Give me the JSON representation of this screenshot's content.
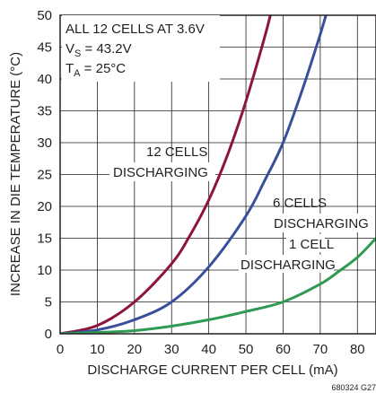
{
  "chart_data": {
    "type": "line",
    "xlabel": "DISCHARGE CURRENT PER CELL (mA)",
    "ylabel": "INCREASE IN DIE TEMPERATURE (°C)",
    "xlim": [
      0,
      85
    ],
    "ylim": [
      0,
      50
    ],
    "x_ticks": [
      "0",
      "10",
      "20",
      "30",
      "40",
      "50",
      "60",
      "70",
      "80"
    ],
    "y_ticks": [
      "0",
      "5",
      "10",
      "15",
      "20",
      "25",
      "30",
      "35",
      "40",
      "45",
      "50"
    ],
    "grid": true,
    "conditions": {
      "line1": "ALL 12 CELLS AT 3.6V",
      "vs_symbol": "V",
      "vs_sub": "S",
      "vs_value": " = 43.2V",
      "ta_symbol": "T",
      "ta_sub": "A",
      "ta_value": " = 25°C"
    },
    "series": [
      {
        "label_lines": [
          "12 CELLS",
          "DISCHARGING"
        ],
        "color": "#8c1538",
        "points": [
          [
            0,
            0
          ],
          [
            10,
            1.3
          ],
          [
            20,
            5
          ],
          [
            30,
            11
          ],
          [
            35,
            15.5
          ],
          [
            40,
            21
          ],
          [
            45,
            28
          ],
          [
            50,
            36.5
          ],
          [
            55,
            46.5
          ],
          [
            57,
            51
          ]
        ]
      },
      {
        "label_lines": [
          "6 CELLS",
          "DISCHARGING"
        ],
        "color": "#3a4f9c",
        "points": [
          [
            0,
            0
          ],
          [
            10,
            0.6
          ],
          [
            20,
            2.2
          ],
          [
            30,
            5
          ],
          [
            40,
            10.5
          ],
          [
            50,
            18.5
          ],
          [
            55,
            24
          ],
          [
            60,
            30
          ],
          [
            65,
            38
          ],
          [
            70,
            47
          ],
          [
            72,
            51
          ]
        ]
      },
      {
        "label_lines": [
          "1 CELL",
          "DISCHARGING"
        ],
        "color": "#2e9a52",
        "points": [
          [
            0,
            0
          ],
          [
            10,
            0.2
          ],
          [
            20,
            0.5
          ],
          [
            30,
            1.2
          ],
          [
            40,
            2.2
          ],
          [
            50,
            3.5
          ],
          [
            60,
            5
          ],
          [
            70,
            7.8
          ],
          [
            75,
            9.8
          ],
          [
            80,
            12
          ],
          [
            85,
            15
          ]
        ]
      }
    ]
  },
  "figure_code": "680324 G27"
}
